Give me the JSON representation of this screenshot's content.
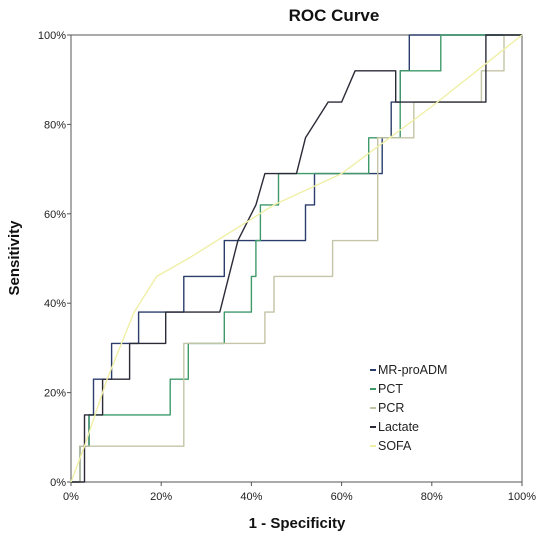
{
  "chart_data": {
    "type": "line",
    "title": "ROC Curve",
    "xlabel": "1 - Specificity",
    "ylabel": "Sensitivity",
    "xlim": [
      0,
      100
    ],
    "ylim": [
      0,
      100
    ],
    "x_ticks": [
      "0%",
      "20%",
      "40%",
      "60%",
      "80%",
      "100%"
    ],
    "y_ticks": [
      "0%",
      "20%",
      "40%",
      "60%",
      "80%",
      "100%"
    ],
    "grid": false,
    "legend_position": "bottom-right",
    "series": [
      {
        "name": "MR-proADM",
        "color": "#2a3d6b",
        "points": [
          [
            0,
            0
          ],
          [
            2,
            0
          ],
          [
            2,
            8
          ],
          [
            4,
            8
          ],
          [
            4,
            15
          ],
          [
            5,
            15
          ],
          [
            5,
            23
          ],
          [
            9,
            23
          ],
          [
            9,
            31
          ],
          [
            15,
            31
          ],
          [
            15,
            38
          ],
          [
            25,
            38
          ],
          [
            25,
            46
          ],
          [
            34,
            46
          ],
          [
            34,
            54
          ],
          [
            52,
            54
          ],
          [
            52,
            62
          ],
          [
            54,
            62
          ],
          [
            54,
            69
          ],
          [
            69,
            69
          ],
          [
            69,
            77
          ],
          [
            71,
            77
          ],
          [
            71,
            85
          ],
          [
            73,
            85
          ],
          [
            73,
            92
          ],
          [
            75,
            92
          ],
          [
            75,
            100
          ],
          [
            100,
            100
          ]
        ]
      },
      {
        "name": "PCT",
        "color": "#3f9a6a",
        "points": [
          [
            0,
            0
          ],
          [
            2,
            0
          ],
          [
            2,
            8
          ],
          [
            4,
            8
          ],
          [
            4,
            15
          ],
          [
            22,
            15
          ],
          [
            22,
            23
          ],
          [
            26,
            23
          ],
          [
            26,
            31
          ],
          [
            34,
            31
          ],
          [
            34,
            38
          ],
          [
            40,
            38
          ],
          [
            40,
            46
          ],
          [
            41,
            46
          ],
          [
            41,
            54
          ],
          [
            42,
            54
          ],
          [
            42,
            62
          ],
          [
            46,
            62
          ],
          [
            46,
            69
          ],
          [
            66,
            69
          ],
          [
            66,
            77
          ],
          [
            73,
            77
          ],
          [
            73,
            92
          ],
          [
            82,
            92
          ],
          [
            82,
            100
          ],
          [
            100,
            100
          ]
        ]
      },
      {
        "name": "PCR",
        "color": "#c4c4a6",
        "points": [
          [
            0,
            0
          ],
          [
            2,
            0
          ],
          [
            2,
            8
          ],
          [
            25,
            8
          ],
          [
            25,
            31
          ],
          [
            43,
            31
          ],
          [
            43,
            38
          ],
          [
            45,
            38
          ],
          [
            45,
            46
          ],
          [
            58,
            46
          ],
          [
            58,
            54
          ],
          [
            68,
            54
          ],
          [
            68,
            77
          ],
          [
            76,
            77
          ],
          [
            76,
            85
          ],
          [
            91,
            85
          ],
          [
            91,
            92
          ],
          [
            96,
            92
          ],
          [
            96,
            100
          ],
          [
            100,
            100
          ]
        ]
      },
      {
        "name": "Lactate",
        "color": "#2b2b38",
        "points": [
          [
            0,
            0
          ],
          [
            3,
            0
          ],
          [
            3,
            15
          ],
          [
            7,
            15
          ],
          [
            7,
            23
          ],
          [
            13,
            23
          ],
          [
            13,
            31
          ],
          [
            21,
            31
          ],
          [
            21,
            38
          ],
          [
            33,
            38
          ],
          [
            35,
            46
          ],
          [
            37,
            54
          ],
          [
            41,
            62
          ],
          [
            43,
            69
          ],
          [
            50,
            69
          ],
          [
            52,
            77
          ],
          [
            57,
            85
          ],
          [
            60,
            85
          ],
          [
            63,
            92
          ],
          [
            72,
            92
          ],
          [
            72,
            85
          ],
          [
            92,
            85
          ],
          [
            92,
            100
          ],
          [
            100,
            100
          ]
        ]
      },
      {
        "name": "SOFA",
        "color": "#f0efa6",
        "points": [
          [
            0,
            0
          ],
          [
            3,
            8
          ],
          [
            8,
            23
          ],
          [
            14,
            38
          ],
          [
            19,
            46
          ],
          [
            26,
            50
          ],
          [
            45,
            62
          ],
          [
            60,
            69
          ],
          [
            80,
            84
          ],
          [
            100,
            100
          ]
        ]
      }
    ]
  }
}
